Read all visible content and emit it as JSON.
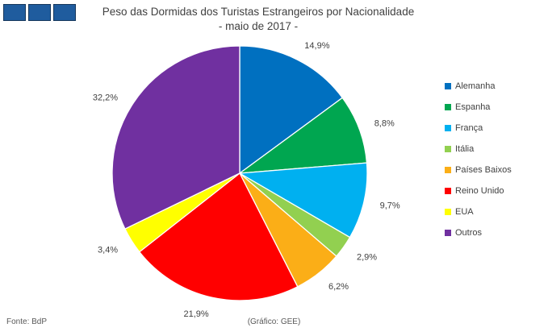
{
  "header": {
    "title_line1": "Peso das Dormidas dos Turistas Estrangeiros por Nacionalidade",
    "title_line2": "- maio de 2017 -",
    "logo_color": "#1F5C9E",
    "logo_border_color": "#16375C"
  },
  "chart_data": {
    "type": "pie",
    "title": "Peso das Dormidas dos Turistas Estrangeiros por Nacionalidade",
    "subtitle": "- maio de 2017 -",
    "categories": [
      "Alemanha",
      "Espanha",
      "França",
      "Itália",
      "Países Baixos",
      "Reino Unido",
      "EUA",
      "Outros"
    ],
    "values": [
      14.9,
      8.8,
      9.7,
      2.9,
      6.2,
      21.9,
      3.4,
      32.2
    ],
    "value_labels": [
      "14,9%",
      "8,8%",
      "9,7%",
      "2,9%",
      "6,2%",
      "21,9%",
      "3,4%",
      "32,2%"
    ],
    "colors": [
      "#0070C0",
      "#00A650",
      "#00B0F0",
      "#92D050",
      "#FBAE17",
      "#FF0000",
      "#FFFF00",
      "#7030A0"
    ],
    "start_angle_deg": 0,
    "direction": "clockwise",
    "legend_position": "right"
  },
  "footer": {
    "source": "Fonte: BdP",
    "credit": "(Gráfico: GEE)"
  }
}
